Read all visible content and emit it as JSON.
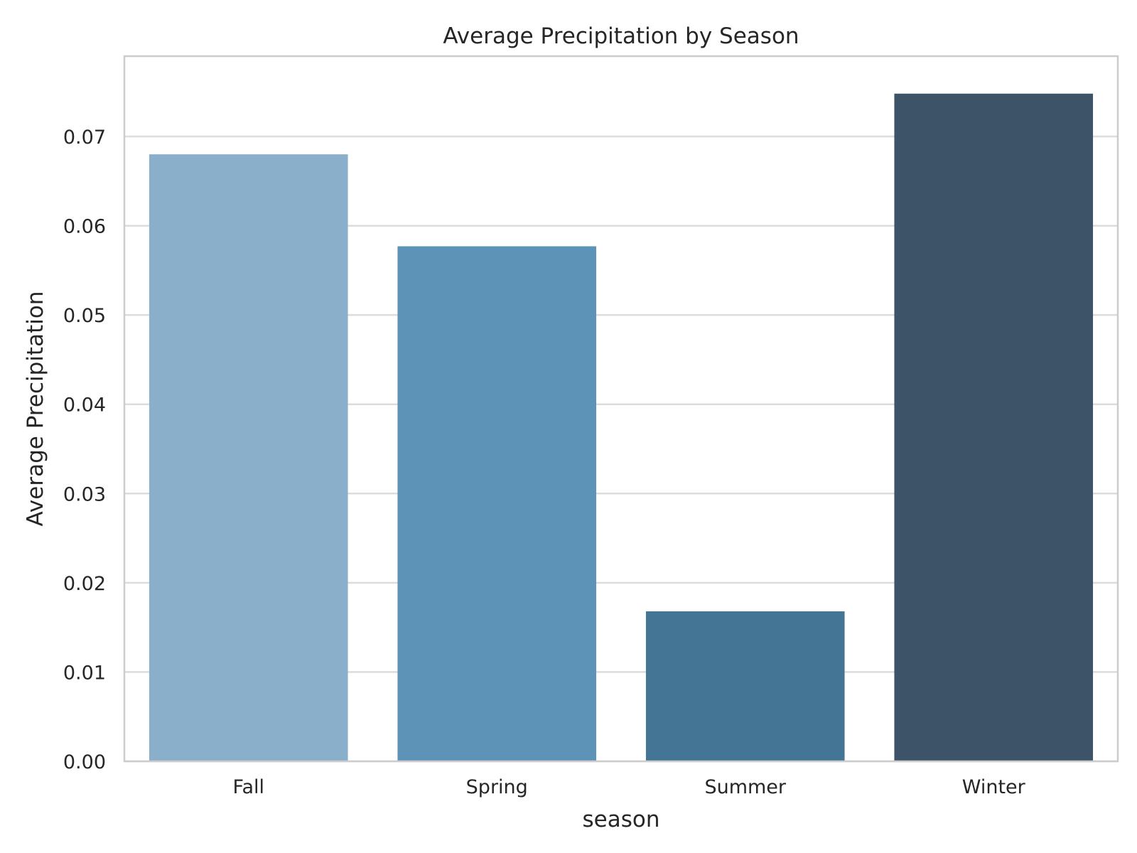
{
  "chart_data": {
    "type": "bar",
    "title": "Average Precipitation by Season",
    "xlabel": "season",
    "ylabel": "Average Precipitation",
    "categories": [
      "Fall",
      "Spring",
      "Summer",
      "Winter"
    ],
    "values": [
      0.068,
      0.0577,
      0.0168,
      0.0748
    ],
    "colors": [
      "#89afcb",
      "#5e93b8",
      "#457595",
      "#3c5368"
    ],
    "ylim": [
      0,
      0.079
    ],
    "yticks": [
      0.0,
      0.01,
      0.02,
      0.03,
      0.04,
      0.05,
      0.06,
      0.07
    ],
    "ytick_labels": [
      "0.00",
      "0.01",
      "0.02",
      "0.03",
      "0.04",
      "0.05",
      "0.06",
      "0.07"
    ],
    "grid": "horizontal",
    "legend": "none"
  }
}
